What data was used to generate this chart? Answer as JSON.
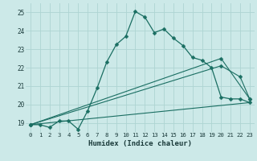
{
  "xlabel": "Humidex (Indice chaleur)",
  "background_color": "#cce9e8",
  "grid_color": "#aed4d2",
  "line_color": "#1a6e62",
  "xlim": [
    -0.5,
    23.5
  ],
  "ylim": [
    18.5,
    25.5
  ],
  "yticks": [
    19,
    20,
    21,
    22,
    23,
    24,
    25
  ],
  "xticks": [
    0,
    1,
    2,
    3,
    4,
    5,
    6,
    7,
    8,
    9,
    10,
    11,
    12,
    13,
    14,
    15,
    16,
    17,
    18,
    19,
    20,
    21,
    22,
    23
  ],
  "line1_x": [
    0,
    1,
    2,
    3,
    4,
    5,
    6,
    7,
    8,
    9,
    10,
    11,
    12,
    13,
    14,
    15,
    16,
    17,
    18,
    19,
    20,
    21,
    22,
    23
  ],
  "line1_y": [
    18.9,
    18.9,
    18.75,
    19.1,
    19.1,
    18.65,
    19.65,
    20.9,
    22.3,
    23.25,
    23.7,
    25.05,
    24.75,
    23.9,
    24.1,
    23.6,
    23.2,
    22.55,
    22.4,
    22.0,
    20.4,
    20.3,
    20.3,
    20.1
  ],
  "line2_x": [
    0,
    23
  ],
  "line2_y": [
    18.9,
    20.1
  ],
  "line3_x": [
    0,
    20,
    22,
    23
  ],
  "line3_y": [
    18.9,
    22.1,
    21.5,
    20.3
  ],
  "line4_x": [
    0,
    20,
    23
  ],
  "line4_y": [
    18.9,
    22.5,
    20.3
  ]
}
